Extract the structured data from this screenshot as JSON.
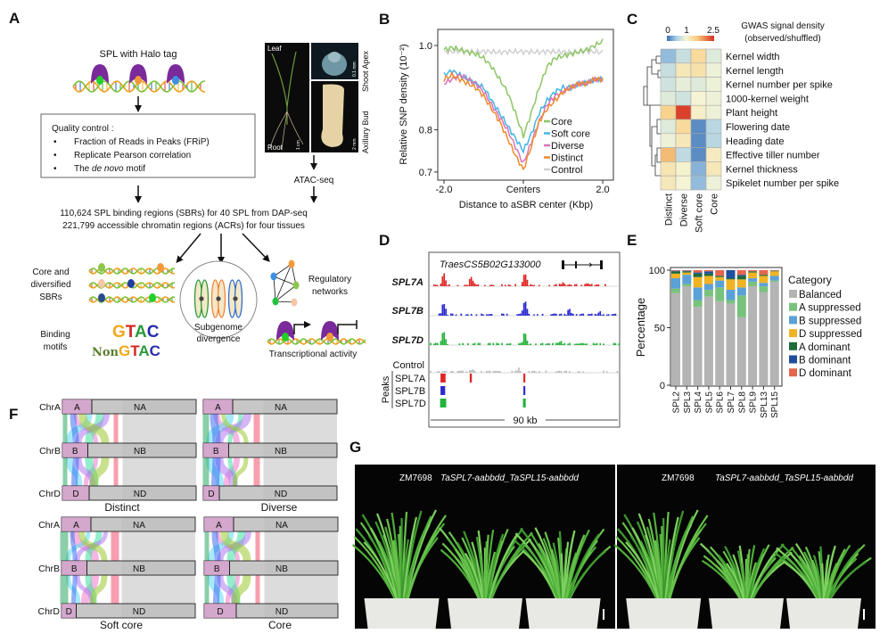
{
  "panel_labels": {
    "a": "A",
    "b": "B",
    "c": "C",
    "d": "D",
    "e": "E",
    "f": "F",
    "g": "G"
  },
  "panelA": {
    "halo_label": "SPL with Halo tag",
    "qc_title": "Quality control :",
    "qc_items": [
      "Fraction of Reads in Peaks (FRiP)",
      "Replicate Pearson correlation"
    ],
    "qc_item3": {
      "pre": "The ",
      "italic": "de novo",
      "post": " motif"
    },
    "bullet": "•",
    "photo": {
      "leaf": "Leaf",
      "root": "Root",
      "scale_root": "1 cm",
      "shoot_apex": "Shoot Apex",
      "scale_apex": "0.1 mm",
      "axillary_bud": "Axillary Bud",
      "scale_bud": "2 mm"
    },
    "atac": "ATAC-seq",
    "summary1": "110,624 SPL binding regions (SBRs) for 40 SPL from DAP-seq",
    "summary2": "221,799 accessible chromatin regions (ACRs) for four tissues",
    "core_sbrs": [
      "Core and",
      "diversified",
      "SBRs"
    ],
    "binding_motifs": [
      "Binding",
      "motifs"
    ],
    "motif1": [
      "G",
      "T",
      "A",
      "C"
    ],
    "motif2": [
      "Non",
      "G",
      "T",
      "A",
      "C"
    ],
    "subgenome": [
      "Subgenome",
      "divergence"
    ],
    "regulatory": [
      "Regulatory",
      "networks"
    ],
    "transcriptional": "Transcriptional activity"
  },
  "chart_data": [
    {
      "id": "B",
      "type": "line",
      "title": "",
      "xlabel": "Distance to aSBR center (Kbp)",
      "ylabel": "Relative SNP density (10⁻²)",
      "xticks": [
        "-2.0",
        "Centers",
        "2.0"
      ],
      "yticks": [
        "0.7",
        "0.8",
        "1.0"
      ],
      "ytick_values": [
        0.7,
        0.8,
        1.0
      ],
      "xlim": [
        -2,
        2
      ],
      "ylim": [
        0.68,
        1.04
      ],
      "x": [
        -2,
        -1.8,
        -1.6,
        -1.4,
        -1.2,
        -1,
        -0.8,
        -0.6,
        -0.4,
        -0.2,
        0,
        0.2,
        0.4,
        0.6,
        0.8,
        1,
        1.2,
        1.4,
        1.6,
        1.8,
        2
      ],
      "legend_position": "bottom-right",
      "series": [
        {
          "name": "Core",
          "color": "#8cc665",
          "values": [
            0.99,
            0.995,
            0.99,
            0.985,
            0.98,
            0.97,
            0.95,
            0.92,
            0.89,
            0.84,
            0.785,
            0.84,
            0.9,
            0.95,
            0.97,
            0.975,
            0.98,
            0.985,
            0.99,
            1.0,
            1.01
          ]
        },
        {
          "name": "Soft core",
          "color": "#41b6e6",
          "values": [
            0.93,
            0.94,
            0.93,
            0.92,
            0.91,
            0.9,
            0.87,
            0.84,
            0.81,
            0.78,
            0.75,
            0.79,
            0.84,
            0.87,
            0.89,
            0.9,
            0.9,
            0.91,
            0.91,
            0.92,
            0.92
          ]
        },
        {
          "name": "Diverse",
          "color": "#d873b8",
          "values": [
            0.91,
            0.92,
            0.93,
            0.92,
            0.91,
            0.89,
            0.86,
            0.83,
            0.8,
            0.76,
            0.72,
            0.77,
            0.82,
            0.86,
            0.88,
            0.89,
            0.9,
            0.91,
            0.91,
            0.92,
            0.92
          ]
        },
        {
          "name": "Distinct",
          "color": "#ee8a2a",
          "values": [
            0.92,
            0.93,
            0.92,
            0.91,
            0.9,
            0.88,
            0.85,
            0.82,
            0.78,
            0.74,
            0.705,
            0.76,
            0.82,
            0.85,
            0.87,
            0.89,
            0.9,
            0.91,
            0.91,
            0.92,
            0.92
          ]
        },
        {
          "name": "Control",
          "color": "#d0d0d0",
          "values": [
            0.985,
            0.985,
            0.986,
            0.984,
            0.985,
            0.986,
            0.985,
            0.984,
            0.985,
            0.986,
            0.985,
            0.985,
            0.984,
            0.986,
            0.985,
            0.985,
            0.984,
            0.985,
            0.986,
            0.985,
            0.984
          ]
        }
      ]
    },
    {
      "id": "C",
      "type": "heatmap",
      "colorbar_title": [
        "GWAS signal density",
        "(observed/shuffled)"
      ],
      "colorbar_ticks": [
        "0",
        "1",
        "2.5"
      ],
      "range": [
        0,
        2.5
      ],
      "columns": [
        "Distinct",
        "Diverse",
        "Soft core",
        "Core"
      ],
      "rows": [
        "Kernel width",
        "Kernel length",
        "Kernel number per spike",
        "1000-kernel weight",
        "Plant height",
        "Flowering date",
        "Heading date",
        "Effective tiller number",
        "Kernel thickness",
        "Spikelet number per spike"
      ],
      "values": [
        [
          0.4,
          0.7,
          1.4,
          0.85
        ],
        [
          0.7,
          1.2,
          1.3,
          0.95
        ],
        [
          0.75,
          0.9,
          0.85,
          0.95
        ],
        [
          0.85,
          0.75,
          1.0,
          0.95
        ],
        [
          1.5,
          2.4,
          1.1,
          0.95
        ],
        [
          0.85,
          1.4,
          0.15,
          0.6
        ],
        [
          0.95,
          1.2,
          0.15,
          0.6
        ],
        [
          1.7,
          0.65,
          0.15,
          1.15
        ],
        [
          1.25,
          1.05,
          0.35,
          1.2
        ],
        [
          1.2,
          1.0,
          0.4,
          0.95
        ]
      ]
    },
    {
      "id": "D",
      "type": "area",
      "gene": "TraesCS5B02G133000",
      "scale_label": "90 kb",
      "xlim_kb": [
        0,
        90
      ],
      "peaks_axis_label": "Peaks",
      "tracks": [
        {
          "name": "SPL7A",
          "color": "#e02626",
          "signal": [
            [
              6.7,
              1.0
            ],
            [
              19.7,
              0.7
            ],
            [
              45,
              0.85
            ],
            [
              63,
              0.3
            ],
            [
              75,
              0.2
            ]
          ]
        },
        {
          "name": "SPL7B",
          "color": "#2a2ad0",
          "signal": [
            [
              6.7,
              0.9
            ],
            [
              45,
              1.0
            ],
            [
              66,
              0.4
            ],
            [
              80,
              0.25
            ]
          ]
        },
        {
          "name": "SPL7D",
          "color": "#22b33a",
          "signal": [
            [
              6.7,
              1.0
            ],
            [
              45,
              0.9
            ],
            [
              62,
              0.15
            ]
          ]
        },
        {
          "name": "Control",
          "color": "#bdbdbd",
          "signal": [
            [
              20,
              0.2
            ],
            [
              42,
              0.25
            ]
          ]
        }
      ],
      "peak_calls": [
        {
          "name": "SPL7A",
          "color": "#e02626",
          "regions": [
            [
              5.5,
              7.9
            ],
            [
              19.3,
              20.3
            ],
            [
              44.6,
              45.5
            ]
          ]
        },
        {
          "name": "SPL7B",
          "color": "#2a2ad0",
          "regions": [
            [
              5.5,
              7.7
            ],
            [
              44.6,
              45.5
            ]
          ]
        },
        {
          "name": "SPL7D",
          "color": "#22b33a",
          "regions": [
            [
              5.3,
              8.2
            ],
            [
              44.4,
              45.7
            ]
          ]
        }
      ]
    },
    {
      "id": "E",
      "type": "bar",
      "stacked": true,
      "ylabel": "Percentage",
      "ylim": [
        0,
        100
      ],
      "yticks": [
        "0",
        "50",
        "100"
      ],
      "legend_title": "Category",
      "categories": [
        "SPL2",
        "SPL3",
        "SPL4",
        "SPL5",
        "SPL6",
        "SPL7",
        "SPL8",
        "SPL9",
        "SPL13",
        "SPL15"
      ],
      "series": [
        {
          "name": "Balanced",
          "color": "#b4b4b4",
          "values": [
            80,
            86,
            68,
            77,
            73,
            71,
            59,
            86,
            81,
            90
          ]
        },
        {
          "name": "A suppressed",
          "color": "#79c27d",
          "values": [
            4,
            2,
            6,
            6,
            12,
            3,
            19,
            4,
            5,
            1
          ]
        },
        {
          "name": "B suppressed",
          "color": "#5aa1d8",
          "values": [
            9,
            8,
            11,
            5,
            6,
            9,
            7,
            3,
            3,
            4
          ]
        },
        {
          "name": "D suppressed",
          "color": "#f0b323",
          "values": [
            4,
            2,
            9,
            7,
            3,
            9,
            7,
            5,
            6,
            4
          ]
        },
        {
          "name": "A dominant",
          "color": "#1d6b3a",
          "values": [
            2,
            1,
            3,
            2,
            1,
            1,
            3,
            1,
            1,
            0.5
          ]
        },
        {
          "name": "B dominant",
          "color": "#1f4f9c",
          "values": [
            0.5,
            0.5,
            1,
            2,
            0,
            7,
            1,
            0,
            0,
            0
          ]
        },
        {
          "name": "D dominant",
          "color": "#e4664f",
          "values": [
            0.5,
            0.5,
            2,
            1,
            5,
            0,
            4,
            1,
            4,
            0.5
          ]
        }
      ]
    },
    {
      "id": "F",
      "type": "diagram",
      "chromosomes": [
        "ChrA",
        "ChrB",
        "ChrD"
      ],
      "panels": [
        {
          "name": "Distinct",
          "fractions": {
            "A": 0.22,
            "B": 0.19,
            "D": 0.2
          }
        },
        {
          "name": "Diverse",
          "fractions": {
            "A": 0.22,
            "B": 0.19,
            "D": 0.12
          }
        },
        {
          "name": "Soft core",
          "fractions": {
            "A": 0.22,
            "B": 0.19,
            "D": 0.11
          }
        },
        {
          "name": "Core",
          "fractions": {
            "A": 0.22,
            "B": 0.19,
            "D": 0.24
          }
        }
      ],
      "segment_labels": {
        "A": "A",
        "NA": "NA",
        "B": "B",
        "NB": "NB",
        "D": "D",
        "ND": "ND"
      }
    }
  ],
  "panelG": {
    "photos": [
      {
        "wt": "ZM7698",
        "mutant": "TaSPL7-aabbdd_TaSPL15-aabbdd"
      },
      {
        "wt": "ZM7698",
        "mutant": "TaSPL7-aabbdd_TaSPL15-aabbdd"
      }
    ]
  }
}
